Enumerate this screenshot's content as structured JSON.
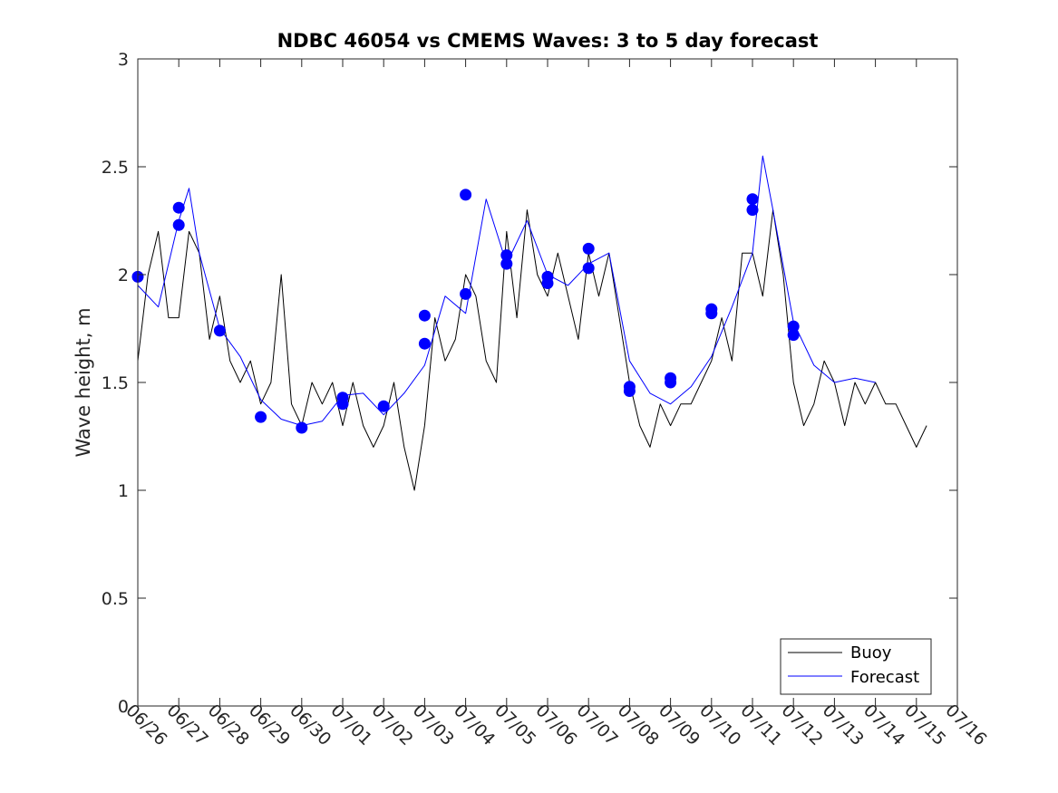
{
  "chart_data": {
    "type": "line",
    "title": "NDBC 46054 vs CMEMS Waves: 3 to 5 day forecast",
    "xlabel": "",
    "ylabel": "Wave height, m",
    "xlim": [
      "2000-06-26",
      "2000-07-16"
    ],
    "ylim": [
      0,
      3
    ],
    "x_tick_labels": [
      "06/26",
      "06/27",
      "06/28",
      "06/29",
      "06/30",
      "07/01",
      "07/02",
      "07/03",
      "07/04",
      "07/05",
      "07/06",
      "07/07",
      "07/08",
      "07/09",
      "07/10",
      "07/11",
      "07/12",
      "07/13",
      "07/14",
      "07/15",
      "07/16"
    ],
    "y_ticks": [
      0,
      0.5,
      1,
      1.5,
      2,
      2.5,
      3
    ],
    "y_tick_labels": [
      "0",
      "0.5",
      "1",
      "1.5",
      "2",
      "2.5",
      "3"
    ],
    "grid": false,
    "legend": {
      "position": "bottom-right",
      "entries": [
        {
          "label": "Buoy",
          "color": "#000000"
        },
        {
          "label": "Forecast",
          "color": "#0000ff"
        }
      ]
    },
    "colors": {
      "buoy": "#000000",
      "forecast": "#0000ff"
    },
    "series": [
      {
        "name": "Buoy",
        "x": [
          "2000-06-26T00:00",
          "2000-06-26T06:00",
          "2000-06-26T12:00",
          "2000-06-26T18:00",
          "2000-06-27T00:00",
          "2000-06-27T06:00",
          "2000-06-27T12:00",
          "2000-06-27T18:00",
          "2000-06-28T00:00",
          "2000-06-28T06:00",
          "2000-06-28T12:00",
          "2000-06-28T18:00",
          "2000-06-29T00:00",
          "2000-06-29T06:00",
          "2000-06-29T12:00",
          "2000-06-29T18:00",
          "2000-06-30T00:00",
          "2000-06-30T06:00",
          "2000-06-30T12:00",
          "2000-06-30T18:00",
          "2000-07-01T00:00",
          "2000-07-01T06:00",
          "2000-07-01T12:00",
          "2000-07-01T18:00",
          "2000-07-02T00:00",
          "2000-07-02T06:00",
          "2000-07-02T12:00",
          "2000-07-02T18:00",
          "2000-07-03T00:00",
          "2000-07-03T06:00",
          "2000-07-03T12:00",
          "2000-07-03T18:00",
          "2000-07-04T00:00",
          "2000-07-04T06:00",
          "2000-07-04T12:00",
          "2000-07-04T18:00",
          "2000-07-05T00:00",
          "2000-07-05T06:00",
          "2000-07-05T12:00",
          "2000-07-05T18:00",
          "2000-07-06T00:00",
          "2000-07-06T06:00",
          "2000-07-06T12:00",
          "2000-07-06T18:00",
          "2000-07-07T00:00",
          "2000-07-07T06:00",
          "2000-07-07T12:00",
          "2000-07-07T18:00",
          "2000-07-08T00:00",
          "2000-07-08T06:00",
          "2000-07-08T12:00",
          "2000-07-08T18:00",
          "2000-07-09T00:00",
          "2000-07-09T06:00",
          "2000-07-09T12:00",
          "2000-07-09T18:00",
          "2000-07-10T00:00",
          "2000-07-10T06:00",
          "2000-07-10T12:00",
          "2000-07-10T18:00",
          "2000-07-11T00:00",
          "2000-07-11T06:00",
          "2000-07-11T12:00",
          "2000-07-11T18:00",
          "2000-07-12T00:00",
          "2000-07-12T06:00",
          "2000-07-12T12:00",
          "2000-07-12T18:00",
          "2000-07-13T00:00",
          "2000-07-13T06:00",
          "2000-07-13T12:00",
          "2000-07-13T18:00",
          "2000-07-14T00:00",
          "2000-07-14T06:00",
          "2000-07-14T12:00",
          "2000-07-14T18:00",
          "2000-07-15T00:00",
          "2000-07-15T06:00"
        ],
        "y": [
          1.6,
          2.0,
          2.2,
          1.8,
          1.8,
          2.2,
          2.1,
          1.7,
          1.9,
          1.6,
          1.5,
          1.6,
          1.4,
          1.5,
          2.0,
          1.4,
          1.3,
          1.5,
          1.4,
          1.5,
          1.3,
          1.5,
          1.3,
          1.2,
          1.3,
          1.5,
          1.2,
          1.0,
          1.3,
          1.8,
          1.6,
          1.7,
          2.0,
          1.9,
          1.6,
          1.5,
          2.2,
          1.8,
          2.3,
          2.0,
          1.9,
          2.1,
          1.9,
          1.7,
          2.1,
          1.9,
          2.1,
          1.8,
          1.5,
          1.3,
          1.2,
          1.4,
          1.3,
          1.4,
          1.4,
          1.5,
          1.6,
          1.8,
          1.6,
          2.1,
          2.1,
          1.9,
          2.3,
          2.0,
          1.5,
          1.3,
          1.4,
          1.6,
          1.5,
          1.3,
          1.5,
          1.4,
          1.5,
          1.4,
          1.4,
          1.3,
          1.2,
          1.3
        ]
      },
      {
        "name": "Forecast",
        "x": [
          "2000-06-26T00:00",
          "2000-06-26T12:00",
          "2000-06-27T00:00",
          "2000-06-27T06:00",
          "2000-06-27T12:00",
          "2000-06-28T00:00",
          "2000-06-28T12:00",
          "2000-06-29T00:00",
          "2000-06-29T12:00",
          "2000-06-30T00:00",
          "2000-06-30T12:00",
          "2000-07-01T00:00",
          "2000-07-01T12:00",
          "2000-07-02T00:00",
          "2000-07-02T12:00",
          "2000-07-03T00:00",
          "2000-07-03T12:00",
          "2000-07-04T00:00",
          "2000-07-04T12:00",
          "2000-07-05T00:00",
          "2000-07-05T12:00",
          "2000-07-06T00:00",
          "2000-07-06T12:00",
          "2000-07-07T00:00",
          "2000-07-07T12:00",
          "2000-07-08T00:00",
          "2000-07-08T12:00",
          "2000-07-09T00:00",
          "2000-07-09T12:00",
          "2000-07-10T00:00",
          "2000-07-10T12:00",
          "2000-07-11T00:00",
          "2000-07-11T06:00",
          "2000-07-11T12:00",
          "2000-07-12T00:00",
          "2000-07-12T12:00",
          "2000-07-13T00:00",
          "2000-07-13T12:00",
          "2000-07-14T00:00"
        ],
        "y": [
          1.95,
          1.85,
          2.25,
          2.4,
          2.1,
          1.75,
          1.62,
          1.42,
          1.33,
          1.3,
          1.32,
          1.44,
          1.45,
          1.35,
          1.45,
          1.58,
          1.9,
          1.82,
          2.35,
          2.05,
          2.25,
          2.0,
          1.95,
          2.05,
          2.1,
          1.6,
          1.45,
          1.4,
          1.48,
          1.62,
          1.85,
          2.1,
          2.55,
          2.3,
          1.78,
          1.58,
          1.5,
          1.52,
          1.5
        ]
      },
      {
        "name": "",
        "x": [
          "2000-06-26T00:00",
          "2000-06-27T00:00",
          "2000-06-27T00:00",
          "2000-06-28T00:00",
          "2000-06-29T00:00",
          "2000-06-30T00:00",
          "2000-07-01T00:00",
          "2000-07-01T00:00",
          "2000-07-02T00:00",
          "2000-07-03T00:00",
          "2000-07-03T00:00",
          "2000-07-04T00:00",
          "2000-07-04T00:00",
          "2000-07-05T00:00",
          "2000-07-05T00:00",
          "2000-07-06T00:00",
          "2000-07-06T00:00",
          "2000-07-07T00:00",
          "2000-07-07T00:00",
          "2000-07-08T00:00",
          "2000-07-08T00:00",
          "2000-07-09T00:00",
          "2000-07-09T00:00",
          "2000-07-10T00:00",
          "2000-07-10T00:00",
          "2000-07-11T00:00",
          "2000-07-11T00:00",
          "2000-07-12T00:00",
          "2000-07-12T00:00"
        ],
        "y": [
          1.99,
          2.31,
          2.23,
          1.74,
          1.34,
          1.29,
          1.43,
          1.4,
          1.39,
          1.81,
          1.68,
          2.37,
          1.91,
          2.09,
          2.05,
          1.99,
          1.96,
          2.12,
          2.03,
          1.48,
          1.46,
          1.52,
          1.5,
          1.84,
          1.82,
          2.35,
          2.3,
          1.76,
          1.72
        ]
      }
    ]
  }
}
